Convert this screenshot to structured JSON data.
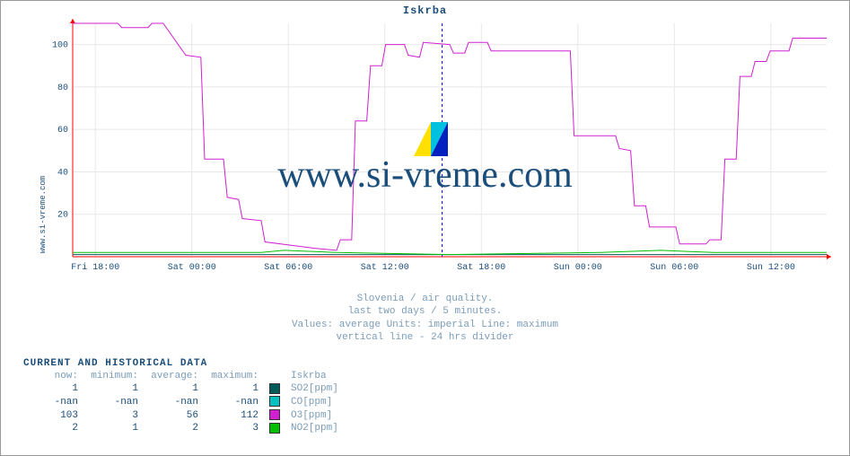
{
  "title": "Iskrba",
  "ylabel_link": "www.si-vreme.com",
  "watermark": "www.si-vreme.com",
  "subtitle": {
    "line1": "Slovenia / air quality.",
    "line2": "last two days / 5 minutes.",
    "line3": "Values: average  Units: imperial  Line: maximum",
    "line4": "vertical line - 24 hrs  divider"
  },
  "chart": {
    "type": "line",
    "background_color": "#ffffff",
    "border_color": "#ff0000",
    "grid_color": "#e8e8e8",
    "divider_color": "#0000ff",
    "divider_dash": "3,3",
    "font_family": "Courier New",
    "title_fontsize": 12,
    "axis_fontsize": 10,
    "y": {
      "min": 0,
      "max": 110,
      "ticks": [
        20,
        40,
        60,
        80,
        100
      ],
      "tick_color": "#1a4d7a"
    },
    "x": {
      "ticks": [
        "Fri 18:00",
        "Sat 00:00",
        "Sat 06:00",
        "Sat 12:00",
        "Sat 18:00",
        "Sun 00:00",
        "Sun 06:00",
        "Sun 12:00"
      ],
      "tick_positions": [
        0.03,
        0.158,
        0.286,
        0.414,
        0.542,
        0.67,
        0.798,
        0.926
      ],
      "divider_position": 0.49
    },
    "series": [
      {
        "name": "SO2[ppm]",
        "color": "#005a5a",
        "line_width": 1,
        "points": [
          [
            0,
            1
          ],
          [
            1,
            1
          ]
        ]
      },
      {
        "name": "CO[ppm]",
        "color": "#00c0c0",
        "line_width": 1,
        "points": []
      },
      {
        "name": "O3[ppm]",
        "color": "#d020d0",
        "line_width": 1,
        "points": [
          [
            0.0,
            110
          ],
          [
            0.06,
            110
          ],
          [
            0.065,
            108
          ],
          [
            0.1,
            108
          ],
          [
            0.105,
            110
          ],
          [
            0.12,
            110
          ],
          [
            0.15,
            95
          ],
          [
            0.17,
            94
          ],
          [
            0.175,
            46
          ],
          [
            0.2,
            46
          ],
          [
            0.205,
            28
          ],
          [
            0.22,
            27
          ],
          [
            0.225,
            18
          ],
          [
            0.25,
            17
          ],
          [
            0.255,
            7
          ],
          [
            0.32,
            4
          ],
          [
            0.35,
            3
          ],
          [
            0.355,
            8
          ],
          [
            0.37,
            8
          ],
          [
            0.375,
            64
          ],
          [
            0.39,
            64
          ],
          [
            0.395,
            90
          ],
          [
            0.41,
            90
          ],
          [
            0.415,
            100
          ],
          [
            0.44,
            100
          ],
          [
            0.445,
            95
          ],
          [
            0.46,
            94
          ],
          [
            0.465,
            101
          ],
          [
            0.5,
            100
          ],
          [
            0.505,
            96
          ],
          [
            0.52,
            96
          ],
          [
            0.525,
            101
          ],
          [
            0.55,
            101
          ],
          [
            0.555,
            97
          ],
          [
            0.58,
            97
          ],
          [
            0.64,
            97
          ],
          [
            0.66,
            97
          ],
          [
            0.665,
            57
          ],
          [
            0.72,
            57
          ],
          [
            0.725,
            51
          ],
          [
            0.74,
            50
          ],
          [
            0.745,
            24
          ],
          [
            0.76,
            24
          ],
          [
            0.765,
            14
          ],
          [
            0.8,
            14
          ],
          [
            0.805,
            6
          ],
          [
            0.84,
            6
          ],
          [
            0.845,
            8
          ],
          [
            0.86,
            8
          ],
          [
            0.865,
            46
          ],
          [
            0.88,
            46
          ],
          [
            0.885,
            85
          ],
          [
            0.9,
            85
          ],
          [
            0.905,
            92
          ],
          [
            0.92,
            92
          ],
          [
            0.925,
            97
          ],
          [
            0.95,
            97
          ],
          [
            0.955,
            103
          ],
          [
            1.0,
            103
          ]
        ]
      },
      {
        "name": "NO2[ppm]",
        "color": "#00c000",
        "line_width": 1,
        "points": [
          [
            0,
            2
          ],
          [
            0.25,
            2
          ],
          [
            0.28,
            3
          ],
          [
            0.35,
            2
          ],
          [
            0.5,
            1
          ],
          [
            0.7,
            2
          ],
          [
            0.78,
            3
          ],
          [
            0.85,
            2
          ],
          [
            1,
            2
          ]
        ]
      }
    ]
  },
  "data_table": {
    "header": "CURRENT AND HISTORICAL DATA",
    "station": "Iskrba",
    "columns": [
      "now:",
      "minimum:",
      "average:",
      "maximum:"
    ],
    "rows": [
      {
        "values": [
          "1",
          "1",
          "1",
          "1"
        ],
        "swatch": "#005a5a",
        "label": "SO2[ppm]"
      },
      {
        "values": [
          "-nan",
          "-nan",
          "-nan",
          "-nan"
        ],
        "swatch": "#00c0c0",
        "label": "CO[ppm]"
      },
      {
        "values": [
          "103",
          "3",
          "56",
          "112"
        ],
        "swatch": "#d020d0",
        "label": "O3[ppm]"
      },
      {
        "values": [
          "2",
          "1",
          "2",
          "3"
        ],
        "swatch": "#00c000",
        "label": "NO2[ppm]"
      }
    ]
  }
}
